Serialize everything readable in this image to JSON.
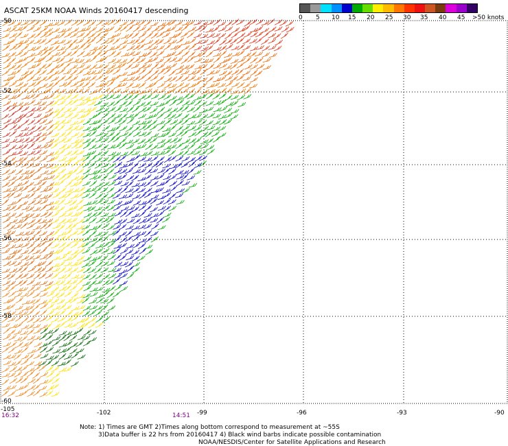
{
  "title": "ASCAT 25KM NOAA Winds 20160417 descending",
  "legend": {
    "colors": [
      "#555555",
      "#999999",
      "#00e0ff",
      "#0090ff",
      "#0000cc",
      "#00aa00",
      "#66dd00",
      "#ffee00",
      "#ffbb00",
      "#ff7700",
      "#ff3300",
      "#ee1111",
      "#cc5522",
      "#7a3a10",
      "#dd00dd",
      "#9900cc",
      "#330066"
    ],
    "labels": [
      "0",
      "5",
      "10",
      "15",
      "20",
      "25",
      "30",
      "35",
      "40",
      "45",
      ">50 knots"
    ]
  },
  "axes": {
    "lat_labels": [
      "-50",
      "-52",
      "-54",
      "-56",
      "-58",
      "-60"
    ],
    "lon_labels": [
      "-105",
      "-102",
      "-99",
      "-96",
      "-93",
      "-90"
    ]
  },
  "times": [
    "16:32",
    "14:51"
  ],
  "notes": {
    "line1": "Note: 1) Times are GMT 2)Times along bottom correspond to measurement at ~55S",
    "line2": "3)Data buffer is 22 hrs from 20160417 4) Black wind barbs indicate possible contamination",
    "line3": "NOAA/NESDIS/Center for Satellite Applications and Research"
  }
}
